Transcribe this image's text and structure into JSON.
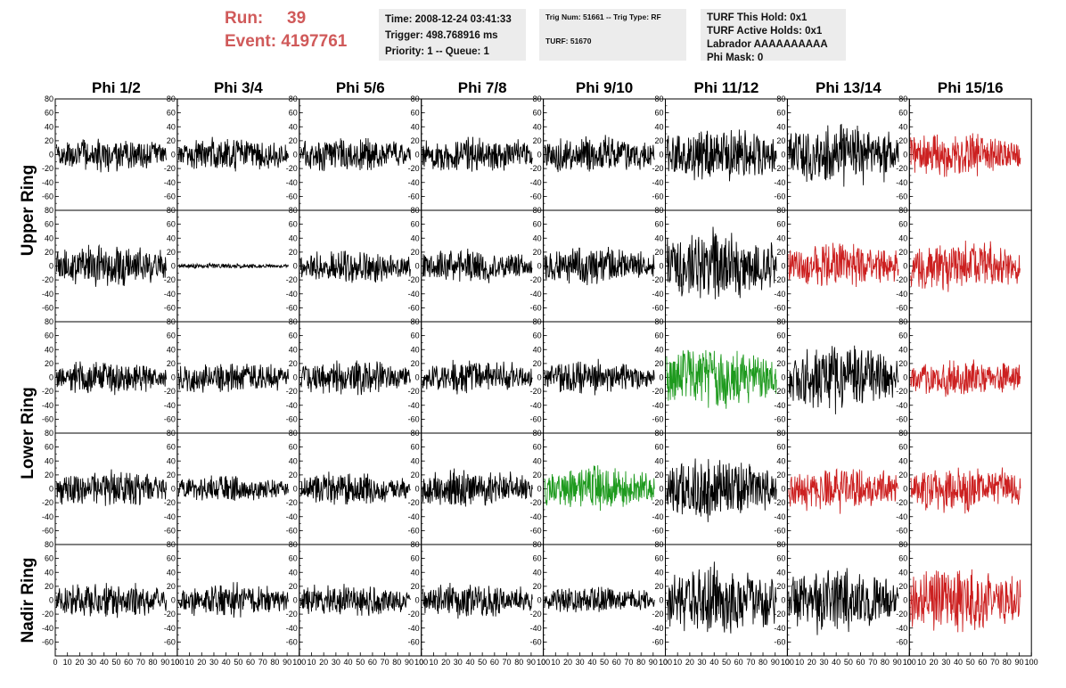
{
  "header": {
    "run_label": "Run:",
    "run_value": "39",
    "event_label": "Event:",
    "event_value": "4197761",
    "info1": [
      "Time: 2008-12-24 03:41:33",
      "Trigger: 498.768916 ms",
      "Priority: 1 -- Queue: 1"
    ],
    "info2": [
      "Trig Num: 51661 -- Trig Type: RF",
      "TURF: 51670"
    ],
    "info3": [
      "TURF This Hold: 0x1",
      "TURF Active Holds: 0x1",
      "Labrador AAAAAAAAAA",
      "Phi Mask: 0"
    ]
  },
  "colors": {
    "default": "#000000",
    "red": "#cc2020",
    "green": "#1e9a1e"
  },
  "chart_data": {
    "type": "line",
    "columns": [
      "Phi 1/2",
      "Phi 3/4",
      "Phi 5/6",
      "Phi 7/8",
      "Phi 9/10",
      "Phi 11/12",
      "Phi 13/14",
      "Phi 15/16"
    ],
    "ring_labels": [
      "Upper Ring",
      "Lower Ring",
      "Nadir Ring"
    ],
    "ylim": [
      -80,
      80
    ],
    "xlim": [
      0,
      100
    ],
    "y_ticks": [
      -60,
      -40,
      -20,
      0,
      20,
      40,
      60,
      80
    ],
    "x_ticks": [
      0,
      10,
      20,
      30,
      40,
      50,
      60,
      70,
      80,
      90,
      100
    ],
    "panels": [
      {
        "row": 0,
        "col": 0,
        "color": "default",
        "amp": 13
      },
      {
        "row": 0,
        "col": 1,
        "color": "default",
        "amp": 13
      },
      {
        "row": 0,
        "col": 2,
        "color": "default",
        "amp": 14
      },
      {
        "row": 0,
        "col": 3,
        "color": "default",
        "amp": 14
      },
      {
        "row": 0,
        "col": 4,
        "color": "default",
        "amp": 15
      },
      {
        "row": 0,
        "col": 5,
        "color": "default",
        "amp": 22
      },
      {
        "row": 0,
        "col": 6,
        "color": "default",
        "amp": 24
      },
      {
        "row": 0,
        "col": 7,
        "color": "red",
        "amp": 18
      },
      {
        "row": 1,
        "col": 0,
        "color": "default",
        "amp": 17
      },
      {
        "row": 1,
        "col": 1,
        "color": "default",
        "amp": 2
      },
      {
        "row": 1,
        "col": 2,
        "color": "default",
        "amp": 13
      },
      {
        "row": 1,
        "col": 3,
        "color": "default",
        "amp": 13
      },
      {
        "row": 1,
        "col": 4,
        "color": "default",
        "amp": 15
      },
      {
        "row": 1,
        "col": 5,
        "color": "default",
        "amp": 28
      },
      {
        "row": 1,
        "col": 6,
        "color": "red",
        "amp": 18
      },
      {
        "row": 1,
        "col": 7,
        "color": "red",
        "amp": 21
      },
      {
        "row": 2,
        "col": 0,
        "color": "default",
        "amp": 13
      },
      {
        "row": 2,
        "col": 1,
        "color": "default",
        "amp": 13
      },
      {
        "row": 2,
        "col": 2,
        "color": "default",
        "amp": 14
      },
      {
        "row": 2,
        "col": 3,
        "color": "default",
        "amp": 13
      },
      {
        "row": 2,
        "col": 4,
        "color": "default",
        "amp": 13
      },
      {
        "row": 2,
        "col": 5,
        "color": "green",
        "amp": 25
      },
      {
        "row": 2,
        "col": 6,
        "color": "default",
        "amp": 26
      },
      {
        "row": 2,
        "col": 7,
        "color": "red",
        "amp": 15
      },
      {
        "row": 3,
        "col": 0,
        "color": "default",
        "amp": 15
      },
      {
        "row": 3,
        "col": 1,
        "color": "default",
        "amp": 10
      },
      {
        "row": 3,
        "col": 2,
        "color": "default",
        "amp": 13
      },
      {
        "row": 3,
        "col": 3,
        "color": "default",
        "amp": 15
      },
      {
        "row": 3,
        "col": 4,
        "color": "green",
        "amp": 18
      },
      {
        "row": 3,
        "col": 5,
        "color": "default",
        "amp": 25
      },
      {
        "row": 3,
        "col": 6,
        "color": "red",
        "amp": 18
      },
      {
        "row": 3,
        "col": 7,
        "color": "red",
        "amp": 18
      },
      {
        "row": 4,
        "col": 0,
        "color": "default",
        "amp": 14
      },
      {
        "row": 4,
        "col": 1,
        "color": "default",
        "amp": 13
      },
      {
        "row": 4,
        "col": 2,
        "color": "default",
        "amp": 13
      },
      {
        "row": 4,
        "col": 3,
        "color": "default",
        "amp": 14
      },
      {
        "row": 4,
        "col": 4,
        "color": "default",
        "amp": 10
      },
      {
        "row": 4,
        "col": 5,
        "color": "default",
        "amp": 28
      },
      {
        "row": 4,
        "col": 6,
        "color": "default",
        "amp": 26
      },
      {
        "row": 4,
        "col": 7,
        "color": "red",
        "amp": 26
      }
    ]
  }
}
